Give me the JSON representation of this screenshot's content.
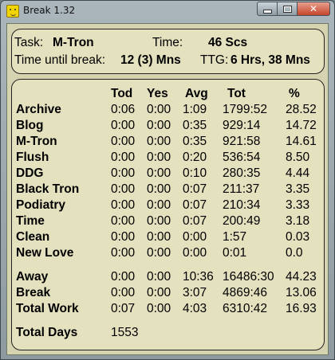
{
  "window": {
    "title": "Break 1.32"
  },
  "summary": {
    "task_label": "Task:",
    "task_value": "M-Tron",
    "time_label": "Time:",
    "time_value": "46 Scs",
    "until_break_label": "Time until break:",
    "until_break_value": "12 (3) Mns",
    "ttg_label": "TTG:",
    "ttg_value": "6 Hrs, 38 Mns"
  },
  "table": {
    "headers": [
      "Tod",
      "Yes",
      "Avg",
      "Tot",
      "%"
    ],
    "rows": [
      {
        "name": "Archive",
        "tod": "0:06",
        "yes": "0:00",
        "avg": "1:09",
        "tot": "1799:52",
        "pct": "28.52"
      },
      {
        "name": "Blog",
        "tod": "0:00",
        "yes": "0:00",
        "avg": "0:35",
        "tot": "929:14",
        "pct": "14.72"
      },
      {
        "name": "M-Tron",
        "tod": "0:00",
        "yes": "0:00",
        "avg": "0:35",
        "tot": "921:58",
        "pct": "14.61"
      },
      {
        "name": "Flush",
        "tod": "0:00",
        "yes": "0:00",
        "avg": "0:20",
        "tot": "536:54",
        "pct": "8.50"
      },
      {
        "name": "DDG",
        "tod": "0:00",
        "yes": "0:00",
        "avg": "0:10",
        "tot": "280:35",
        "pct": "4.44"
      },
      {
        "name": "Black Tron",
        "tod": "0:00",
        "yes": "0:00",
        "avg": "0:07",
        "tot": "211:37",
        "pct": "3.35"
      },
      {
        "name": "Podiatry",
        "tod": "0:00",
        "yes": "0:00",
        "avg": "0:07",
        "tot": "210:34",
        "pct": "3.33"
      },
      {
        "name": "Time",
        "tod": "0:00",
        "yes": "0:00",
        "avg": "0:07",
        "tot": "200:49",
        "pct": "3.18"
      },
      {
        "name": "Clean",
        "tod": "0:00",
        "yes": "0:00",
        "avg": "0:00",
        "tot": "1:57",
        "pct": "0.03"
      },
      {
        "name": "New Love",
        "tod": "0:00",
        "yes": "0:00",
        "avg": "0:00",
        "tot": "0:01",
        "pct": "0.0"
      }
    ],
    "totals": [
      {
        "name": "Away",
        "tod": "0:00",
        "yes": "0:00",
        "avg": "10:36",
        "tot": "16486:30",
        "pct": "44.23"
      },
      {
        "name": "Break",
        "tod": "0:00",
        "yes": "0:00",
        "avg": "3:07",
        "tot": "4869:46",
        "pct": "13.06"
      },
      {
        "name": "Total Work",
        "tod": "0:07",
        "yes": "0:00",
        "avg": "4:03",
        "tot": "6310:42",
        "pct": "16.93"
      }
    ],
    "total_days_label": "Total Days",
    "total_days_value": "1553"
  }
}
